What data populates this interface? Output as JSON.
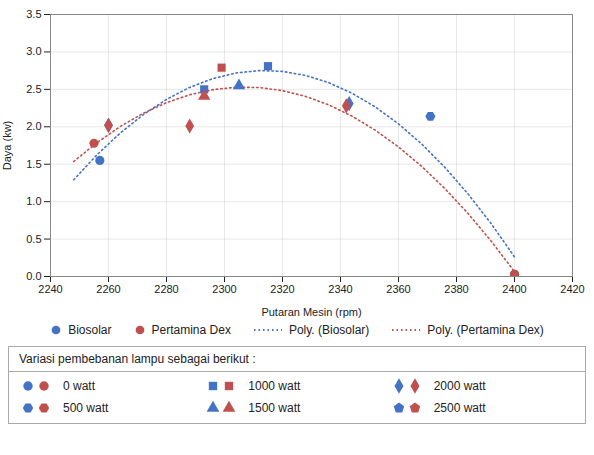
{
  "chart_data": {
    "type": "scatter",
    "xlabel": "Putaran Mesin (rpm)",
    "ylabel": "Daya (kw)",
    "xlim": [
      2240,
      2420
    ],
    "ylim": [
      0,
      3.5
    ],
    "xticks": [
      2240,
      2260,
      2280,
      2300,
      2320,
      2340,
      2360,
      2380,
      2400,
      2420
    ],
    "yticks": [
      {
        "value": 0,
        "label": "0.0"
      },
      0.5,
      {
        "value": 1.0,
        "label": "1.0"
      },
      1.5,
      {
        "value": 2.0,
        "label": "2.0"
      },
      2.5,
      {
        "value": 3.0,
        "label": "3.0"
      },
      3.5
    ],
    "grid": true,
    "legend": "bottom",
    "series": [
      {
        "name": "Biosolar",
        "type": "scatter",
        "color": "#4472C4",
        "marker": "circle",
        "x": [
          2257,
          2260,
          2293,
          2305,
          2315,
          2343,
          2371,
          2400
        ],
        "values": [
          1.55,
          2.02,
          2.5,
          2.55,
          2.81,
          2.31,
          2.14,
          0.03
        ],
        "markers": [
          "circle",
          "diamond",
          "square",
          "triangle",
          "square",
          "diamond",
          "hexagon",
          "circle"
        ]
      },
      {
        "name": "Pertamina Dex",
        "type": "scatter",
        "color": "#C0504D",
        "marker": "circle",
        "x": [
          2255,
          2260,
          2288,
          2293,
          2299,
          2342,
          2400
        ],
        "values": [
          1.78,
          2.02,
          2.01,
          2.41,
          2.79,
          2.28,
          0.03
        ],
        "markers": [
          "circle",
          "diamond",
          "diamond",
          "triangle",
          "square",
          "diamond",
          "circle"
        ]
      },
      {
        "name": "Poly. (Biosolar)",
        "type": "line",
        "line_style": "dotted",
        "color": "#4472C4",
        "x": [
          2248,
          2256,
          2264,
          2272,
          2280,
          2288,
          2296,
          2304,
          2312,
          2320,
          2328,
          2336,
          2344,
          2352,
          2360,
          2368,
          2376,
          2384,
          2392,
          2400
        ],
        "values": [
          1.292,
          1.625,
          1.915,
          2.162,
          2.366,
          2.527,
          2.644,
          2.719,
          2.751,
          2.74,
          2.686,
          2.589,
          2.448,
          2.265,
          2.039,
          1.77,
          1.457,
          1.102,
          0.704,
          0.262
        ]
      },
      {
        "name": "Poly. (Pertamina Dex)",
        "type": "line",
        "line_style": "dotted",
        "color": "#C0504D",
        "x": [
          2248,
          2256,
          2264,
          2272,
          2280,
          2288,
          2296,
          2304,
          2312,
          2320,
          2328,
          2336,
          2344,
          2352,
          2360,
          2368,
          2376,
          2384,
          2392,
          2400
        ],
        "values": [
          1.536,
          1.787,
          2.002,
          2.181,
          2.322,
          2.428,
          2.496,
          2.529,
          2.524,
          2.483,
          2.406,
          2.292,
          2.141,
          1.954,
          1.731,
          1.471,
          1.174,
          0.841,
          0.471,
          0.065
        ]
      }
    ],
    "marker_table": {
      "title": "Variasi pembebanan lampu sebagai berikut :",
      "entries": [
        {
          "label": "0 watt",
          "marker": "circle"
        },
        {
          "label": "1000 watt",
          "marker": "square"
        },
        {
          "label": "2000 watt",
          "marker": "diamond"
        },
        {
          "label": "500 watt",
          "marker": "hexagon"
        },
        {
          "label": "1500 watt",
          "marker": "triangle"
        },
        {
          "label": "2500 watt",
          "marker": "pentagon"
        }
      ]
    }
  }
}
